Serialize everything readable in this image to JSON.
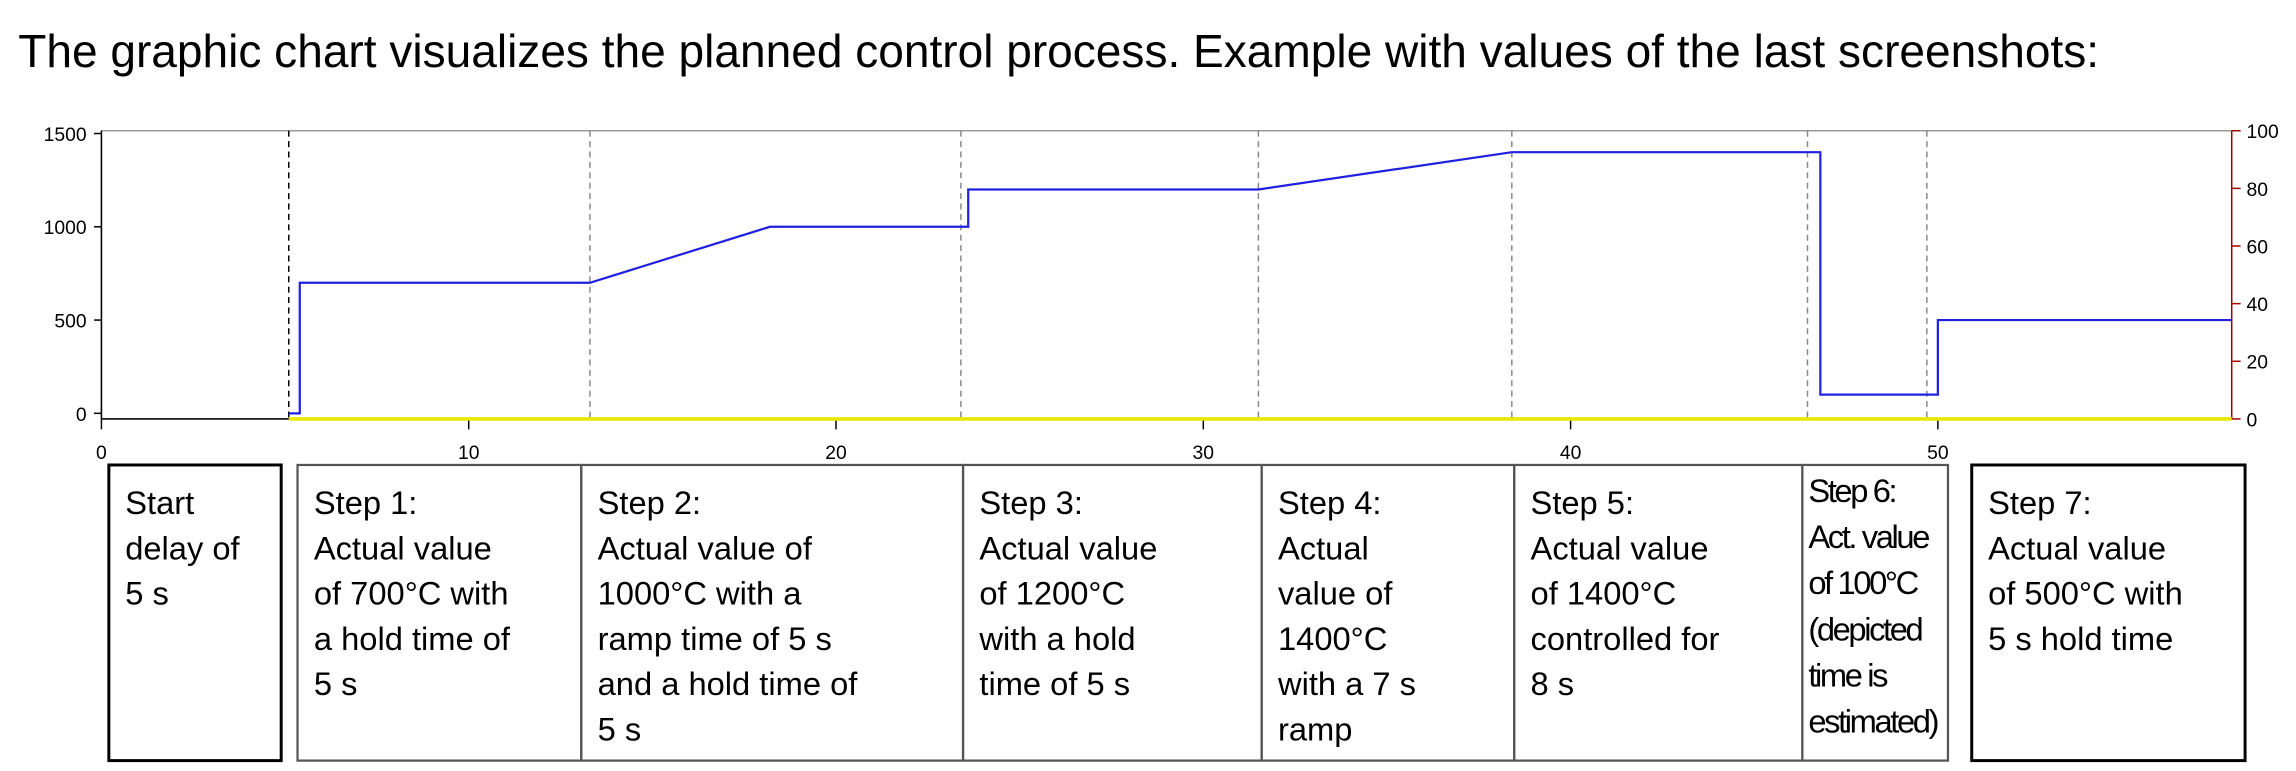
{
  "header": {
    "title": "The graphic chart visualizes the planned control process. Example with values of the last screenshots:"
  },
  "chart_data": {
    "type": "line",
    "xlim": [
      0,
      58
    ],
    "xticks": [
      0,
      10,
      20,
      30,
      40,
      50
    ],
    "ylim": [
      -30,
      1515
    ],
    "yticks": [
      0,
      500,
      1000,
      1500
    ],
    "y2lim": [
      0,
      100
    ],
    "y2ticks": [
      0,
      20,
      40,
      60,
      80,
      100
    ],
    "y2color": "#a00000",
    "markers": [
      {
        "x": 5.1,
        "color": "#000000"
      },
      {
        "x": 13.3,
        "color": "#888888"
      },
      {
        "x": 23.4,
        "color": "#888888"
      },
      {
        "x": 31.5,
        "color": "#888888"
      },
      {
        "x": 38.4,
        "color": "#888888"
      },
      {
        "x": 46.45,
        "color": "#888888"
      },
      {
        "x": 49.7,
        "color": "#888888"
      }
    ],
    "series": [
      {
        "color": "#2020e0",
        "x": [
          5.1,
          5.4,
          5.4,
          13.3,
          18.2,
          23.6,
          23.6,
          31.5,
          38.4,
          46.8,
          46.8,
          50.0,
          50.0,
          58
        ],
        "values": [
          0,
          0,
          700,
          700,
          1000,
          1000,
          1200,
          1200,
          1400,
          1400,
          100,
          100,
          500,
          500
        ]
      },
      {
        "color": "#e8e800",
        "axis": "y2",
        "x": [
          5.1,
          58
        ],
        "values": [
          0,
          0
        ]
      }
    ]
  },
  "boxes": [
    {
      "lines": [
        "Start",
        "delay of",
        "5 s"
      ]
    },
    {
      "lines": [
        "Step 1:",
        "Actual value",
        "of 700°C with",
        "a hold time of",
        "5 s"
      ]
    },
    {
      "lines": [
        "Step 2:",
        "Actual value of",
        "1000°C with a",
        "ramp time of 5 s",
        "and a hold time of",
        "5 s"
      ]
    },
    {
      "lines": [
        "Step 3:",
        "Actual value",
        "of 1200°C",
        "with a hold",
        "time of 5 s"
      ]
    },
    {
      "lines": [
        "Step 4:",
        "Actual",
        "value of",
        "1400°C",
        "with a 7 s",
        "ramp"
      ]
    },
    {
      "lines": [
        "Step 5:",
        "Actual value",
        "of 1400°C",
        "controlled for",
        "8 s"
      ]
    },
    {
      "lines": [
        "Step 6:",
        "Act. value",
        "of 100°C",
        "(depicted",
        "time is",
        "estimated)"
      ]
    },
    {
      "lines": [
        "Step 7:",
        "Actual value",
        "of 500°C with",
        "5 s hold time"
      ]
    }
  ]
}
